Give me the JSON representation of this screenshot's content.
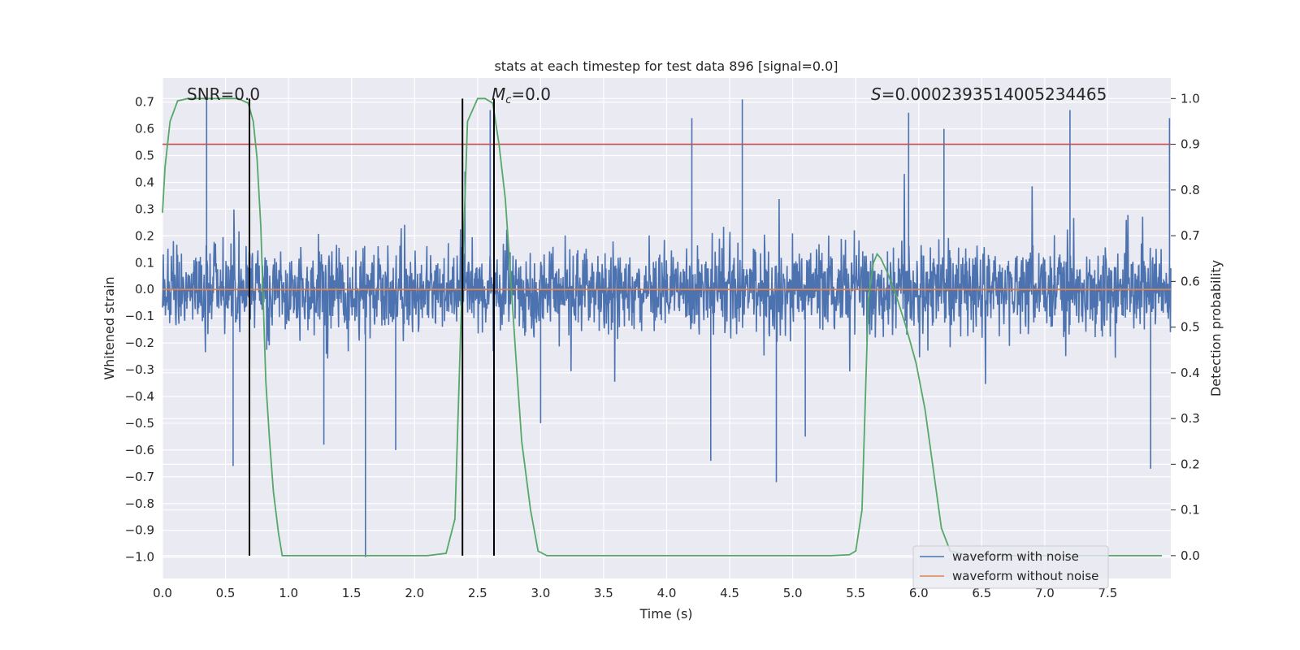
{
  "chart_data": {
    "type": "line",
    "title": "stats at each timestep for test data 896 [signal=0.0]",
    "xlabel": "Time (s)",
    "ylabel": "Whitened strain",
    "y2label": "Detection probability",
    "xlim": [
      0.0,
      8.0
    ],
    "ylim": [
      -1.08,
      0.79
    ],
    "y2lim": [
      -0.05,
      1.045
    ],
    "grid": true,
    "legend_position": "lower-right",
    "x_ticks": [
      "0.0",
      "0.5",
      "1.0",
      "1.5",
      "2.0",
      "2.5",
      "3.0",
      "3.5",
      "4.0",
      "4.5",
      "5.0",
      "5.5",
      "6.0",
      "6.5",
      "7.0",
      "7.5"
    ],
    "y_ticks": [
      "0.7",
      "0.6",
      "0.5",
      "0.4",
      "0.3",
      "0.2",
      "0.1",
      "0.0",
      "−0.1",
      "−0.2",
      "−0.3",
      "−0.4",
      "−0.5",
      "−0.6",
      "−0.7",
      "−0.8",
      "−0.9",
      "−1.0"
    ],
    "y2_ticks": [
      "1.0",
      "0.9",
      "0.8",
      "0.7",
      "0.6",
      "0.5",
      "0.4",
      "0.3",
      "0.2",
      "0.1",
      "0.0"
    ],
    "annotations": {
      "snr": "SNR=0.0",
      "mc_symbol": "M",
      "mc_sub": "c",
      "mc_value": "=0.0",
      "s_symbol": "S",
      "s_value": "=0.0002393514005234465"
    },
    "series": [
      {
        "name": "waveform with noise",
        "color": "#4c72b0",
        "axis": "left",
        "description_of_values": "dense noise envelope",
        "noise_band": [
          -0.3,
          0.3
        ],
        "spikes": [
          {
            "x": 0.35,
            "y": 0.71
          },
          {
            "x": 0.56,
            "y": -0.66
          },
          {
            "x": 1.61,
            "y": -1.0
          },
          {
            "x": 1.28,
            "y": -0.58
          },
          {
            "x": 1.85,
            "y": -0.6
          },
          {
            "x": 2.6,
            "y": 0.67
          },
          {
            "x": 4.2,
            "y": 0.64
          },
          {
            "x": 4.35,
            "y": -0.64
          },
          {
            "x": 4.6,
            "y": 0.71
          },
          {
            "x": 4.87,
            "y": -0.72
          },
          {
            "x": 5.92,
            "y": 0.66
          },
          {
            "x": 6.2,
            "y": 0.6
          },
          {
            "x": 7.2,
            "y": 0.67
          },
          {
            "x": 7.84,
            "y": -0.67
          },
          {
            "x": 7.99,
            "y": 0.64
          },
          {
            "x": 2.4,
            "y": 0.44
          },
          {
            "x": 3.0,
            "y": -0.5
          },
          {
            "x": 5.1,
            "y": -0.55
          }
        ]
      },
      {
        "name": "waveform without noise",
        "color": "#dd8452",
        "axis": "left",
        "x": [
          0.0,
          8.0
        ],
        "y": [
          0.0,
          0.0
        ]
      },
      {
        "name": "",
        "color": "#55a868",
        "axis": "right",
        "x": [
          0.0,
          0.02,
          0.06,
          0.12,
          0.2,
          0.3,
          0.4,
          0.5,
          0.6,
          0.68,
          0.72,
          0.75,
          0.78,
          0.8,
          0.82,
          0.85,
          0.88,
          0.92,
          0.95,
          1.0,
          1.2,
          1.5,
          1.8,
          2.1,
          2.25,
          2.32,
          2.35,
          2.38,
          2.42,
          2.5,
          2.56,
          2.62,
          2.67,
          2.72,
          2.76,
          2.8,
          2.85,
          2.92,
          2.98,
          3.05,
          3.2,
          3.6,
          4.0,
          4.5,
          5.0,
          5.3,
          5.45,
          5.5,
          5.55,
          5.6,
          5.64,
          5.67,
          5.7,
          5.75,
          5.82,
          5.9,
          5.98,
          6.05,
          6.12,
          6.18,
          6.25,
          6.4,
          6.8,
          7.2,
          7.6,
          7.93
        ],
        "y": [
          0.75,
          0.85,
          0.95,
          0.995,
          1.0,
          1.0,
          1.0,
          1.0,
          1.0,
          0.99,
          0.95,
          0.87,
          0.72,
          0.55,
          0.38,
          0.25,
          0.14,
          0.05,
          0.0,
          0.0,
          0.0,
          0.0,
          0.0,
          0.0,
          0.005,
          0.08,
          0.35,
          0.62,
          0.95,
          1.0,
          1.0,
          0.99,
          0.9,
          0.78,
          0.62,
          0.45,
          0.25,
          0.1,
          0.01,
          0.0,
          0.0,
          0.0,
          0.0,
          0.0,
          0.0,
          0.0,
          0.002,
          0.01,
          0.1,
          0.56,
          0.64,
          0.66,
          0.65,
          0.62,
          0.57,
          0.5,
          0.42,
          0.32,
          0.18,
          0.06,
          0.01,
          0.0,
          0.0,
          0.0,
          0.0,
          0.0
        ]
      }
    ],
    "hlines": [
      {
        "y": 0.9,
        "axis": "right",
        "color": "#c44e52"
      }
    ],
    "vlines": [
      {
        "x": 0.69,
        "color": "#000000"
      },
      {
        "x": 2.38,
        "color": "#000000"
      },
      {
        "x": 2.63,
        "color": "#000000"
      }
    ]
  }
}
